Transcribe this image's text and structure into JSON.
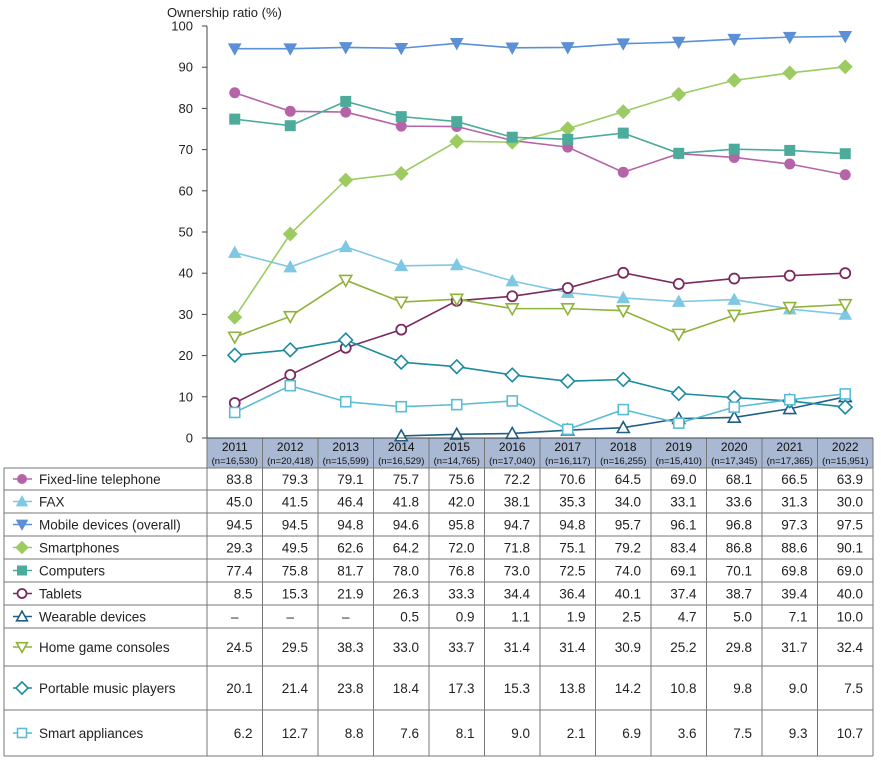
{
  "chart_data": {
    "type": "line",
    "ylabel": "Ownership ratio (%)",
    "ylim": [
      0,
      100
    ],
    "yticks": [
      0,
      10,
      20,
      30,
      40,
      50,
      60,
      70,
      80,
      90,
      100
    ],
    "grid": false,
    "legend_placement": "table-below",
    "categories": [
      "2011",
      "2012",
      "2013",
      "2014",
      "2015",
      "2016",
      "2017",
      "2018",
      "2019",
      "2020",
      "2021",
      "2022"
    ],
    "sample_sizes": [
      "(n=16,530)",
      "(n=20,418)",
      "(n=15,599)",
      "(n=16,529)",
      "(n=14,765)",
      "(n=17,040)",
      "(n=16,117)",
      "(n=16,255)",
      "(n=15,410)",
      "(n=17,345)",
      "(n=17,365)",
      "(n=15,951)"
    ],
    "missing_symbol": "–",
    "series": [
      {
        "name": "Fixed-line telephone",
        "color": "#b565a7",
        "marker": "circle-filled",
        "values": [
          "83.8",
          "79.3",
          "79.1",
          "75.7",
          "75.6",
          "72.2",
          "70.6",
          "64.5",
          "69.0",
          "68.1",
          "66.5",
          "63.9"
        ]
      },
      {
        "name": "FAX",
        "color": "#7ec8e3",
        "marker": "triangle-up-filled",
        "values": [
          "45.0",
          "41.5",
          "46.4",
          "41.8",
          "42.0",
          "38.1",
          "35.3",
          "34.0",
          "33.1",
          "33.6",
          "31.3",
          "30.0"
        ]
      },
      {
        "name": "Mobile devices (overall)",
        "color": "#5b8fd6",
        "marker": "triangle-down-filled",
        "values": [
          "94.5",
          "94.5",
          "94.8",
          "94.6",
          "95.8",
          "94.7",
          "94.8",
          "95.7",
          "96.1",
          "96.8",
          "97.3",
          "97.5"
        ]
      },
      {
        "name": "Smartphones",
        "color": "#9ccb62",
        "marker": "diamond-filled",
        "values": [
          "29.3",
          "49.5",
          "62.6",
          "64.2",
          "72.0",
          "71.8",
          "75.1",
          "79.2",
          "83.4",
          "86.8",
          "88.6",
          "90.1"
        ]
      },
      {
        "name": "Computers",
        "color": "#4cab9a",
        "marker": "square-filled",
        "values": [
          "77.4",
          "75.8",
          "81.7",
          "78.0",
          "76.8",
          "73.0",
          "72.5",
          "74.0",
          "69.1",
          "70.1",
          "69.8",
          "69.0"
        ]
      },
      {
        "name": "Tablets",
        "color": "#7b2a5e",
        "marker": "circle-open",
        "values": [
          "8.5",
          "15.3",
          "21.9",
          "26.3",
          "33.3",
          "34.4",
          "36.4",
          "40.1",
          "37.4",
          "38.7",
          "39.4",
          "40.0"
        ]
      },
      {
        "name": "Wearable devices",
        "color": "#1f5f85",
        "marker": "triangle-up-open",
        "values": [
          null,
          null,
          null,
          "0.5",
          "0.9",
          "1.1",
          "1.9",
          "2.5",
          "4.7",
          "5.0",
          "7.1",
          "10.0"
        ]
      },
      {
        "name": "Home game consoles",
        "color": "#8fb23a",
        "marker": "triangle-down-open",
        "values": [
          "24.5",
          "29.5",
          "38.3",
          "33.0",
          "33.7",
          "31.4",
          "31.4",
          "30.9",
          "25.2",
          "29.8",
          "31.7",
          "32.4"
        ]
      },
      {
        "name": "Portable music players",
        "color": "#1d8aa0",
        "marker": "diamond-open",
        "values": [
          "20.1",
          "21.4",
          "23.8",
          "18.4",
          "17.3",
          "15.3",
          "13.8",
          "14.2",
          "10.8",
          "9.8",
          "9.0",
          "7.5"
        ]
      },
      {
        "name": "Smart appliances",
        "color": "#5bbcd6",
        "marker": "square-open",
        "values": [
          "6.2",
          "12.7",
          "8.8",
          "7.6",
          "8.1",
          "9.0",
          "2.1",
          "6.9",
          "3.6",
          "7.5",
          "9.3",
          "10.7"
        ]
      }
    ]
  }
}
